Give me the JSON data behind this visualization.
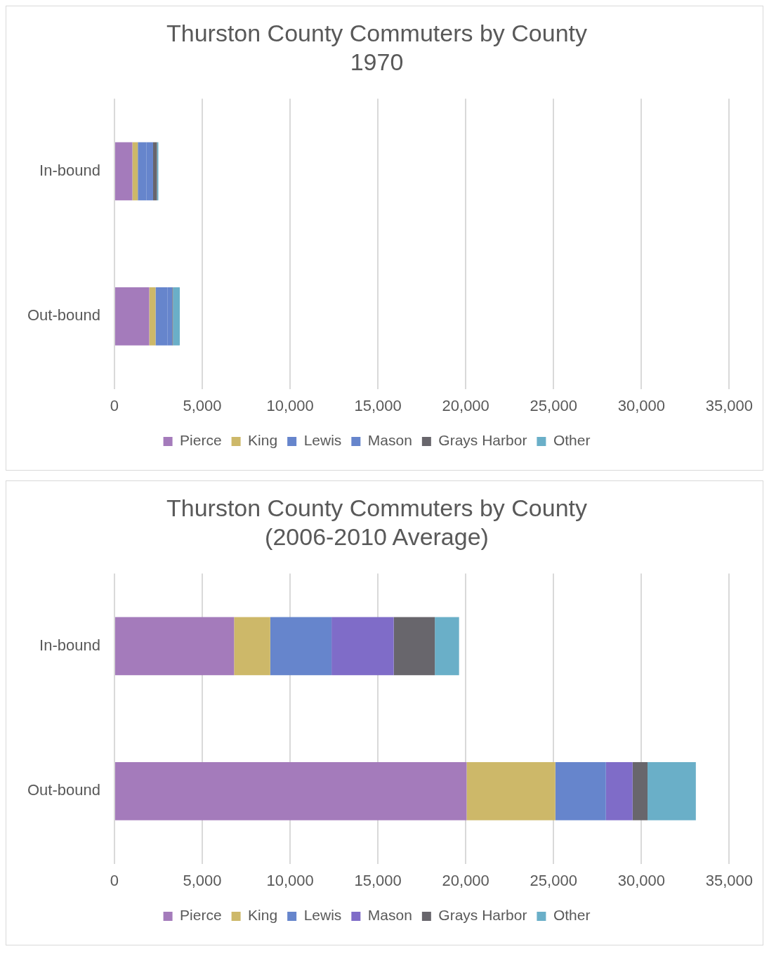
{
  "chart_data": [
    {
      "type": "bar",
      "orientation": "horizontal",
      "stacked": true,
      "title": "Thurston County Commuters by County\n1970",
      "categories": [
        "In-bound",
        "Out-bound"
      ],
      "series": [
        {
          "name": "Pierce",
          "color": "#a47bbb",
          "values": [
            1020,
            1980
          ]
        },
        {
          "name": "King",
          "color": "#cdb869",
          "values": [
            310,
            360
          ]
        },
        {
          "name": "Lewis",
          "color": "#6685cc",
          "values": [
            500,
            690
          ]
        },
        {
          "name": "Mason",
          "color": "#6685cc",
          "values": [
            370,
            260
          ]
        },
        {
          "name": "Grays Harbor",
          "color": "#68666c",
          "values": [
            220,
            40
          ]
        },
        {
          "name": "Other",
          "color": "#6aafc8",
          "values": [
            80,
            390
          ]
        }
      ],
      "xlim": [
        0,
        35000
      ],
      "xticks": [
        0,
        {
          "value": 5000,
          "label": "5,000"
        },
        {
          "value": 10000,
          "label": "10,000"
        },
        {
          "value": 15000,
          "label": "15,000"
        },
        {
          "value": 20000,
          "label": "20,000"
        },
        {
          "value": 25000,
          "label": "25,000"
        },
        {
          "value": 30000,
          "label": "30,000"
        },
        {
          "value": 35000,
          "label": "35,000"
        }
      ],
      "grid": "x",
      "legend": "bottom"
    },
    {
      "type": "bar",
      "orientation": "horizontal",
      "stacked": true,
      "title": "Thurston County Commuters by County\n(2006-2010 Average)",
      "categories": [
        "In-bound",
        "Out-bound"
      ],
      "series": [
        {
          "name": "Pierce",
          "color": "#a47bbb",
          "values": [
            6810,
            20050
          ]
        },
        {
          "name": "King",
          "color": "#cdb869",
          "values": [
            2060,
            5050
          ]
        },
        {
          "name": "Lewis",
          "color": "#6685cc",
          "values": [
            3490,
            2880
          ]
        },
        {
          "name": "Mason",
          "color": "#7f6cc8",
          "values": [
            3540,
            1520
          ]
        },
        {
          "name": "Grays Harbor",
          "color": "#68666c",
          "values": [
            2340,
            850
          ]
        },
        {
          "name": "Other",
          "color": "#6aafc8",
          "values": [
            1380,
            2750
          ]
        }
      ],
      "xlim": [
        0,
        35000
      ],
      "xticks": [
        0,
        {
          "value": 5000,
          "label": "5,000"
        },
        {
          "value": 10000,
          "label": "10,000"
        },
        {
          "value": 15000,
          "label": "15,000"
        },
        {
          "value": 20000,
          "label": "20,000"
        },
        {
          "value": 25000,
          "label": "25,000"
        },
        {
          "value": 30000,
          "label": "30,000"
        },
        {
          "value": 35000,
          "label": "35,000"
        }
      ],
      "grid": "x",
      "legend": "bottom"
    }
  ]
}
